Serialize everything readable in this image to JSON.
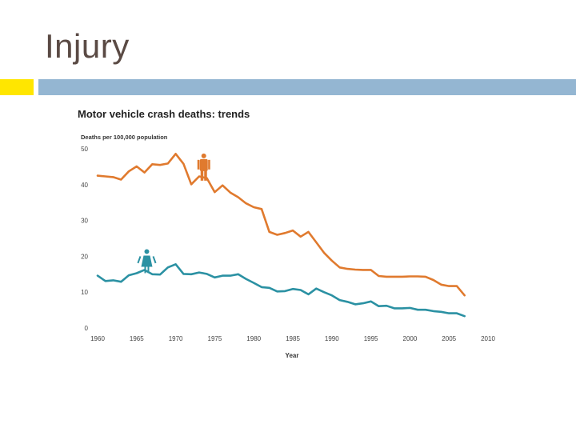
{
  "slide": {
    "title": "Injury"
  },
  "colors": {
    "male": "#e07a2e",
    "female": "#2b91a3",
    "accent_yellow": "#ffe600",
    "accent_blue": "#94b6d2"
  },
  "chart_data": {
    "type": "line",
    "title": "Motor vehicle crash deaths: trends",
    "ylabel": "Deaths per 100,000 population",
    "xlabel": "Year",
    "xlim": [
      1960,
      2010
    ],
    "ylim": [
      0,
      50
    ],
    "xticks": [
      1960,
      1965,
      1970,
      1975,
      1980,
      1985,
      1990,
      1995,
      2000,
      2005,
      2010
    ],
    "yticks": [
      0,
      10,
      20,
      30,
      40,
      50
    ],
    "series": [
      {
        "name": "Male",
        "icon": "male-figure-icon",
        "x": [
          1960,
          1961,
          1962,
          1963,
          1964,
          1965,
          1966,
          1967,
          1968,
          1969,
          1970,
          1971,
          1972,
          1973,
          1974,
          1975,
          1976,
          1977,
          1978,
          1979,
          1980,
          1981,
          1982,
          1983,
          1984,
          1985,
          1986,
          1987,
          1988,
          1989,
          1990,
          1991,
          1992,
          1993,
          1994,
          1995,
          1996,
          1997,
          1998,
          1999,
          2000,
          2001,
          2002,
          2003,
          2004,
          2005,
          2006,
          2007
        ],
        "values": [
          42.5,
          42.3,
          42.1,
          41.4,
          43.7,
          45.1,
          43.4,
          45.7,
          45.5,
          45.9,
          48.6,
          45.8,
          40.1,
          42.3,
          41.8,
          37.9,
          39.8,
          37.8,
          36.5,
          34.8,
          33.7,
          33.2,
          26.8,
          26.0,
          26.5,
          27.2,
          25.5,
          26.8,
          23.9,
          21.0,
          18.8,
          16.9,
          16.5,
          16.3,
          16.2,
          16.2,
          14.5,
          14.3,
          14.3,
          14.3,
          14.4,
          14.4,
          14.3,
          13.4,
          12.1,
          11.7,
          11.7,
          9.1
        ]
      },
      {
        "name": "Female",
        "icon": "female-figure-icon",
        "x": [
          1960,
          1961,
          1962,
          1963,
          1964,
          1965,
          1966,
          1967,
          1968,
          1969,
          1970,
          1971,
          1972,
          1973,
          1974,
          1975,
          1976,
          1977,
          1978,
          1979,
          1980,
          1981,
          1982,
          1983,
          1984,
          1985,
          1986,
          1987,
          1988,
          1989,
          1990,
          1991,
          1992,
          1993,
          1994,
          1995,
          1996,
          1997,
          1998,
          1999,
          2000,
          2001,
          2002,
          2003,
          2004,
          2005,
          2006,
          2007
        ],
        "values": [
          14.6,
          13.1,
          13.3,
          12.9,
          14.7,
          15.3,
          16.2,
          15.0,
          14.9,
          16.9,
          17.8,
          15.1,
          15.0,
          15.5,
          15.1,
          14.1,
          14.6,
          14.6,
          15.0,
          13.7,
          12.6,
          11.4,
          11.2,
          10.2,
          10.3,
          10.9,
          10.6,
          9.4,
          11.0,
          10.0,
          9.1,
          7.8,
          7.3,
          6.6,
          6.9,
          7.4,
          6.1,
          6.2,
          5.5,
          5.5,
          5.6,
          5.1,
          5.1,
          4.7,
          4.5,
          4.1,
          4.1,
          3.3
        ]
      }
    ]
  }
}
